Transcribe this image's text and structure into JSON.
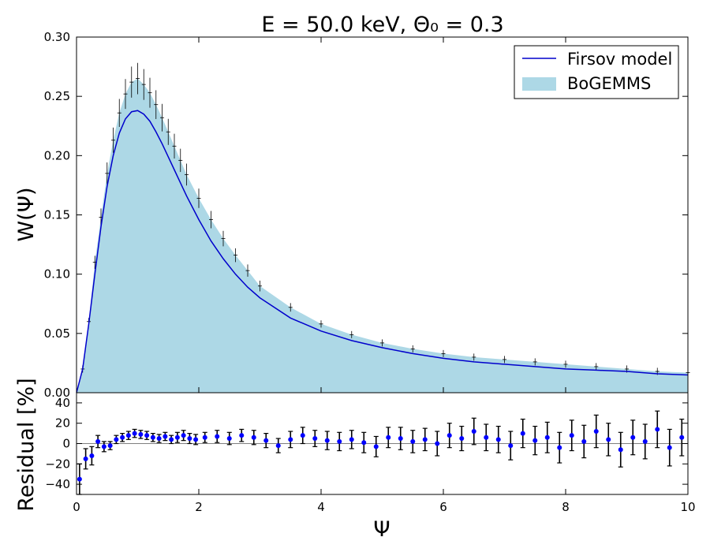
{
  "chart_data": [
    {
      "panel": "main",
      "type": "area",
      "title": "E = 50.0 keV, Θ₀ = 0.3",
      "xlabel": "",
      "ylabel": "W(Ψ)",
      "xlim": [
        0,
        10
      ],
      "ylim": [
        0,
        0.3
      ],
      "y_ticks": [
        "0.00",
        "0.05",
        "0.10",
        "0.15",
        "0.20",
        "0.25",
        "0.30"
      ],
      "grid": false,
      "legend": {
        "placement": "top-right",
        "entries": [
          "Firsov model",
          "BoGEMMS"
        ]
      },
      "colors": {
        "histogram": "#add8e6",
        "model": "#0000cc",
        "errorbar": "#000000"
      },
      "series": [
        {
          "name": "Firsov model",
          "type": "line",
          "x": [
            0.0,
            0.1,
            0.2,
            0.3,
            0.4,
            0.5,
            0.6,
            0.7,
            0.8,
            0.9,
            1.0,
            1.1,
            1.2,
            1.3,
            1.4,
            1.5,
            1.6,
            1.7,
            1.8,
            2.0,
            2.2,
            2.4,
            2.6,
            2.8,
            3.0,
            3.5,
            4.0,
            4.5,
            5.0,
            5.5,
            6.0,
            6.5,
            7.0,
            7.5,
            8.0,
            8.5,
            9.0,
            9.5,
            10.0
          ],
          "y": [
            0.0,
            0.02,
            0.058,
            0.1,
            0.14,
            0.174,
            0.2,
            0.219,
            0.231,
            0.237,
            0.238,
            0.235,
            0.229,
            0.22,
            0.21,
            0.199,
            0.188,
            0.177,
            0.166,
            0.146,
            0.128,
            0.113,
            0.1,
            0.089,
            0.08,
            0.063,
            0.052,
            0.044,
            0.038,
            0.033,
            0.029,
            0.026,
            0.024,
            0.022,
            0.02,
            0.019,
            0.018,
            0.016,
            0.015
          ]
        },
        {
          "name": "BoGEMMS",
          "type": "histogram",
          "x": [
            0.0,
            0.1,
            0.2,
            0.3,
            0.4,
            0.5,
            0.6,
            0.7,
            0.8,
            0.9,
            1.0,
            1.1,
            1.2,
            1.3,
            1.4,
            1.5,
            1.6,
            1.7,
            1.8,
            2.0,
            2.2,
            2.4,
            2.6,
            2.8,
            3.0,
            3.5,
            4.0,
            4.5,
            5.0,
            5.5,
            6.0,
            6.5,
            7.0,
            7.5,
            8.0,
            8.5,
            9.0,
            9.5,
            10.0
          ],
          "y": [
            0.0,
            0.02,
            0.06,
            0.11,
            0.148,
            0.185,
            0.213,
            0.236,
            0.252,
            0.262,
            0.265,
            0.26,
            0.253,
            0.243,
            0.232,
            0.22,
            0.208,
            0.196,
            0.184,
            0.164,
            0.146,
            0.13,
            0.116,
            0.103,
            0.09,
            0.072,
            0.058,
            0.049,
            0.042,
            0.037,
            0.033,
            0.03,
            0.028,
            0.026,
            0.024,
            0.022,
            0.02,
            0.018,
            0.017
          ]
        }
      ]
    },
    {
      "panel": "residual",
      "type": "scatter",
      "xlabel": "Ψ",
      "ylabel": "Residual [%]",
      "xlim": [
        0,
        10
      ],
      "ylim": [
        -50,
        50
      ],
      "x_ticks": [
        "0",
        "2",
        "4",
        "6",
        "8",
        "10"
      ],
      "y_ticks": [
        "−40",
        "−20",
        "0",
        "20",
        "40"
      ],
      "grid": false,
      "colors": {
        "points": "#0000ff",
        "errorbar": "#000000"
      },
      "series": [
        {
          "x": [
            0.05,
            0.15,
            0.25,
            0.35,
            0.45,
            0.55,
            0.65,
            0.75,
            0.85,
            0.95,
            1.05,
            1.15,
            1.25,
            1.35,
            1.45,
            1.55,
            1.65,
            1.75,
            1.85,
            1.95,
            2.1,
            2.3,
            2.5,
            2.7,
            2.9,
            3.1,
            3.3,
            3.5,
            3.7,
            3.9,
            4.1,
            4.3,
            4.5,
            4.7,
            4.9,
            5.1,
            5.3,
            5.5,
            5.7,
            5.9,
            6.1,
            6.3,
            6.5,
            6.7,
            6.9,
            7.1,
            7.3,
            7.5,
            7.7,
            7.9,
            8.1,
            8.3,
            8.5,
            8.7,
            8.9,
            9.1,
            9.3,
            9.5,
            9.7,
            9.9
          ],
          "y": [
            -35,
            -15,
            -12,
            2,
            -3,
            -2,
            4,
            6,
            8,
            10,
            9,
            8,
            6,
            5,
            7,
            4,
            6,
            8,
            5,
            4,
            6,
            7,
            5,
            8,
            6,
            3,
            -2,
            4,
            8,
            5,
            3,
            2,
            4,
            1,
            -3,
            6,
            5,
            2,
            4,
            0,
            8,
            5,
            12,
            6,
            4,
            -2,
            10,
            3,
            6,
            -4,
            8,
            2,
            12,
            4,
            -6,
            6,
            2,
            14,
            -4,
            6
          ],
          "errors": [
            15,
            10,
            9,
            6,
            5,
            4,
            4,
            4,
            4,
            4,
            4,
            4,
            4,
            4,
            4,
            4,
            5,
            5,
            5,
            5,
            5,
            6,
            6,
            6,
            7,
            7,
            7,
            8,
            8,
            8,
            9,
            9,
            9,
            10,
            10,
            10,
            11,
            11,
            11,
            12,
            12,
            12,
            13,
            13,
            13,
            14,
            14,
            14,
            15,
            15,
            15,
            16,
            16,
            16,
            17,
            17,
            17,
            18,
            18,
            18
          ]
        }
      ]
    }
  ]
}
